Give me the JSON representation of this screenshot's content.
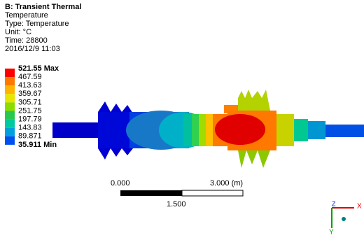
{
  "header": {
    "title": "B: Transient Thermal",
    "lines": [
      "Temperature",
      "Type: Temperature",
      "Unit: °C",
      "Time: 28800",
      "2016/12/9 11:03"
    ]
  },
  "legend": {
    "labels": [
      "521.55 Max",
      "467.59",
      "413.63",
      "359.67",
      "305.71",
      "251.75",
      "197.79",
      "143.83",
      "89.871",
      "35.911 Min"
    ],
    "colors": [
      "#ff0000",
      "#ff7800",
      "#ffb400",
      "#e6e600",
      "#8cdc00",
      "#28c850",
      "#00c8a0",
      "#00a0dc",
      "#0050f0"
    ]
  },
  "scale_bar": {
    "left": "0.000",
    "right": "3.000 (m)",
    "middle": "1.500"
  },
  "triad": {
    "x": "X",
    "y": "Y",
    "z": "Z"
  }
}
